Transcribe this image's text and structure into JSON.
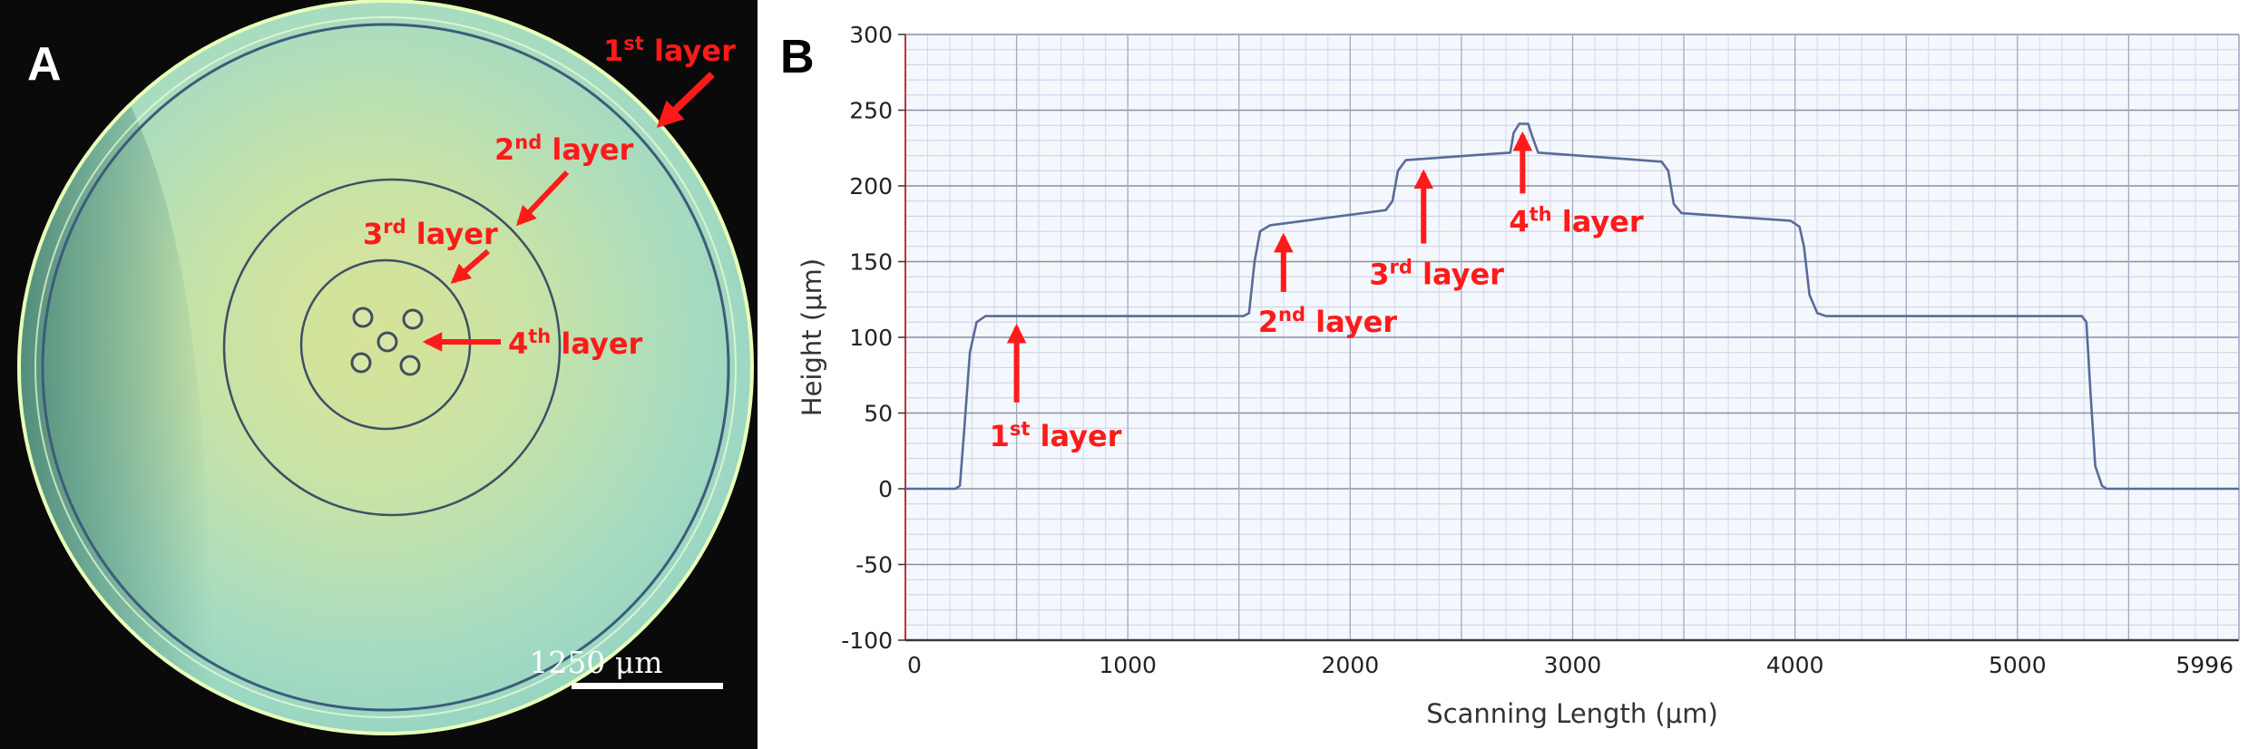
{
  "panel_a": {
    "letter": "A",
    "scale_bar": "1250 μm",
    "annotations": [
      {
        "num": "1",
        "sup": "st",
        "word": "layer"
      },
      {
        "num": "2",
        "sup": "nd",
        "word": "layer"
      },
      {
        "num": "3",
        "sup": "rd",
        "word": "layer"
      },
      {
        "num": "4",
        "sup": "th",
        "word": "layer"
      }
    ]
  },
  "panel_b": {
    "letter": "B"
  },
  "chart_data": {
    "type": "line",
    "title": "",
    "xlabel": "Scanning Length (μm)",
    "ylabel": "Height (μm)",
    "xlim": [
      0,
      5996
    ],
    "ylim": [
      -100,
      300
    ],
    "x_ticks": [
      0,
      1000,
      2000,
      3000,
      4000,
      5000,
      5996
    ],
    "y_ticks": [
      300,
      250,
      200,
      150,
      100,
      50,
      0,
      -50,
      -100
    ],
    "grid": true,
    "series": [
      {
        "color": "#5a6a9a",
        "points": [
          [
            0,
            0
          ],
          [
            225,
            0
          ],
          [
            245,
            2
          ],
          [
            265,
            40
          ],
          [
            290,
            90
          ],
          [
            320,
            110
          ],
          [
            360,
            114
          ],
          [
            1520,
            114
          ],
          [
            1545,
            116
          ],
          [
            1570,
            150
          ],
          [
            1595,
            170
          ],
          [
            1640,
            174
          ],
          [
            2160,
            184
          ],
          [
            2190,
            190
          ],
          [
            2215,
            210
          ],
          [
            2250,
            217
          ],
          [
            2720,
            222
          ],
          [
            2735,
            235
          ],
          [
            2760,
            241
          ],
          [
            2800,
            241
          ],
          [
            2820,
            232
          ],
          [
            2845,
            222
          ],
          [
            3400,
            216
          ],
          [
            3430,
            210
          ],
          [
            3455,
            188
          ],
          [
            3490,
            182
          ],
          [
            3980,
            177
          ],
          [
            4020,
            173
          ],
          [
            4040,
            160
          ],
          [
            4065,
            128
          ],
          [
            4100,
            116
          ],
          [
            4140,
            114
          ],
          [
            5290,
            114
          ],
          [
            5310,
            110
          ],
          [
            5330,
            60
          ],
          [
            5350,
            15
          ],
          [
            5380,
            2
          ],
          [
            5400,
            0
          ],
          [
            5996,
            0
          ]
        ]
      }
    ],
    "annotations": [
      {
        "num": "1",
        "sup": "st",
        "word": "layer",
        "arrow_x": 500,
        "arrow_from_y": 57,
        "arrow_to_y": 110
      },
      {
        "num": "2",
        "sup": "nd",
        "word": "layer",
        "arrow_x": 1700,
        "arrow_from_y": 130,
        "arrow_to_y": 170
      },
      {
        "num": "3",
        "sup": "rd",
        "word": "layer",
        "arrow_x": 2330,
        "arrow_from_y": 162,
        "arrow_to_y": 212
      },
      {
        "num": "4",
        "sup": "th",
        "word": "layer",
        "arrow_x": 2775,
        "arrow_from_y": 195,
        "arrow_to_y": 237
      }
    ]
  }
}
